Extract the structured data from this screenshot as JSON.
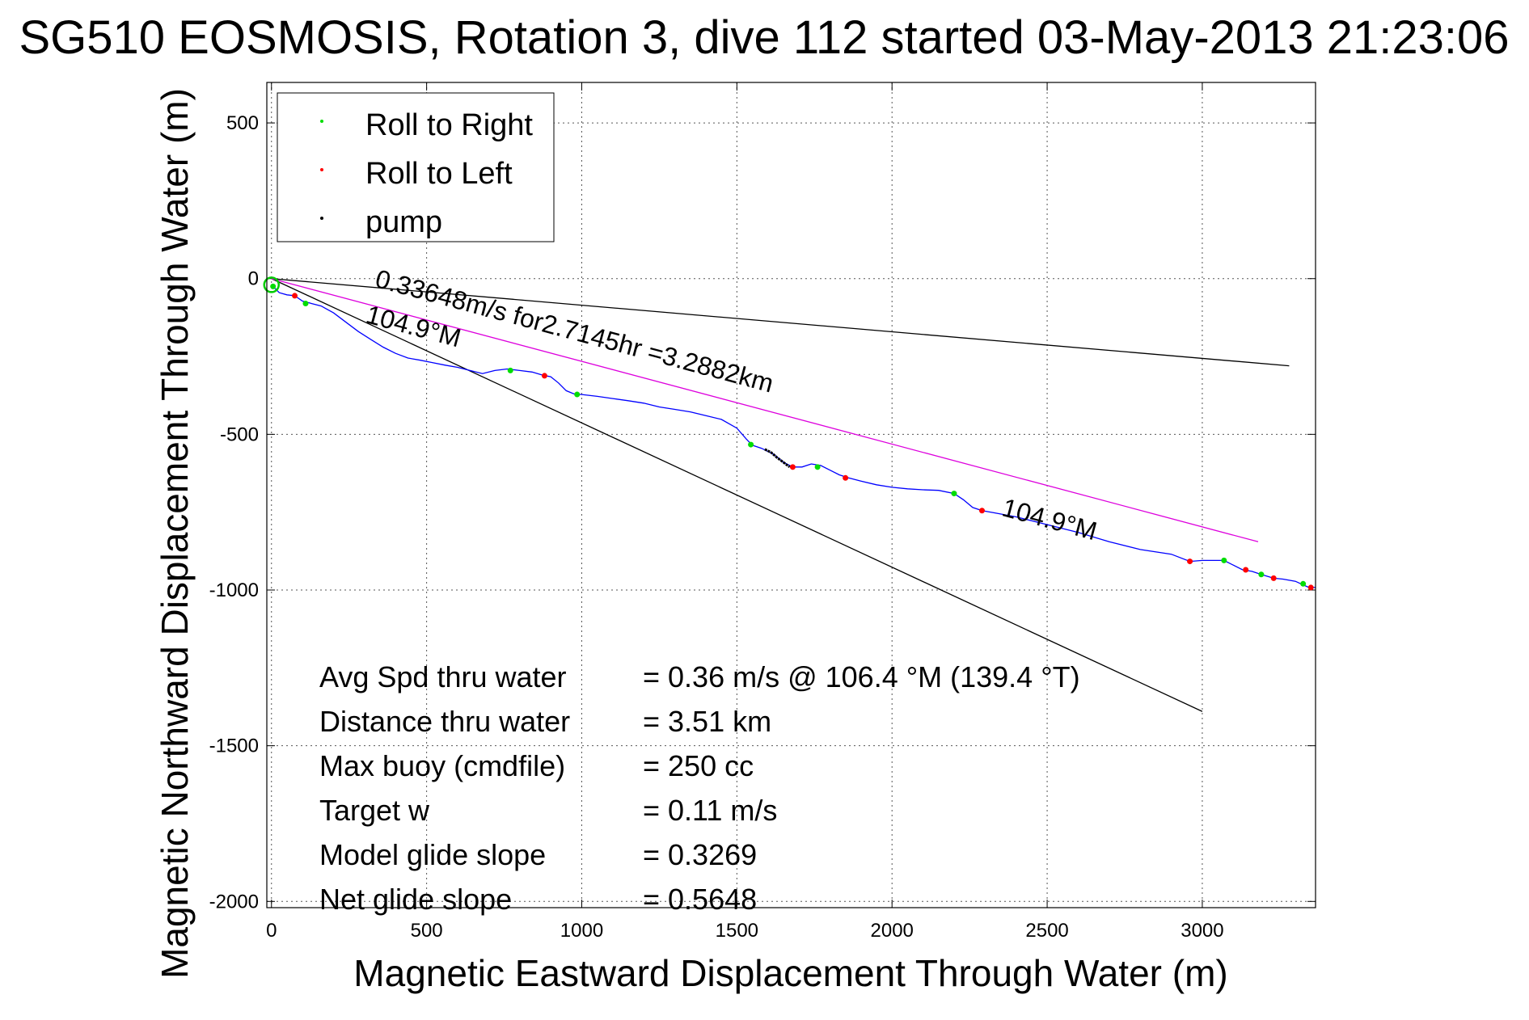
{
  "chart_data": {
    "type": "line",
    "title": "SG510 EOSMOSIS, Rotation 3, dive 112 started 03-May-2013 21:23:06",
    "xlabel": "Magnetic Eastward Displacement Through Water (m)",
    "ylabel": "Magnetic Northward Displacement Through Water (m)",
    "xlim": [
      -15,
      3365
    ],
    "ylim": [
      -2020,
      630
    ],
    "xticks": [
      0,
      500,
      1000,
      1500,
      2000,
      2500,
      3000
    ],
    "yticks": [
      500,
      0,
      -500,
      -1000,
      -1500,
      -2000
    ],
    "grid": true,
    "legend_position": "top-left",
    "legend": [
      {
        "label": "Roll to Right",
        "color": "#00dd00"
      },
      {
        "label": "Roll to Left",
        "color": "#ff0000"
      },
      {
        "label": "pump",
        "color": "#000000"
      }
    ],
    "track": {
      "name": "track",
      "color": "#0000ff",
      "points": [
        [
          0,
          -20
        ],
        [
          25,
          -45
        ],
        [
          50,
          -52
        ],
        [
          75,
          -55
        ],
        [
          100,
          -72
        ],
        [
          130,
          -80
        ],
        [
          160,
          -88
        ],
        [
          200,
          -110
        ],
        [
          240,
          -140
        ],
        [
          280,
          -170
        ],
        [
          320,
          -195
        ],
        [
          360,
          -220
        ],
        [
          400,
          -240
        ],
        [
          440,
          -255
        ],
        [
          480,
          -262
        ],
        [
          520,
          -270
        ],
        [
          560,
          -278
        ],
        [
          600,
          -285
        ],
        [
          640,
          -295
        ],
        [
          680,
          -305
        ],
        [
          720,
          -295
        ],
        [
          760,
          -290
        ],
        [
          800,
          -295
        ],
        [
          840,
          -300
        ],
        [
          875,
          -310
        ],
        [
          900,
          -315
        ],
        [
          925,
          -335
        ],
        [
          950,
          -360
        ],
        [
          975,
          -370
        ],
        [
          1000,
          -372
        ],
        [
          1050,
          -378
        ],
        [
          1100,
          -385
        ],
        [
          1150,
          -392
        ],
        [
          1200,
          -400
        ],
        [
          1250,
          -412
        ],
        [
          1300,
          -420
        ],
        [
          1350,
          -428
        ],
        [
          1400,
          -440
        ],
        [
          1450,
          -452
        ],
        [
          1500,
          -480
        ],
        [
          1530,
          -515
        ],
        [
          1550,
          -535
        ],
        [
          1580,
          -545
        ],
        [
          1620,
          -565
        ],
        [
          1650,
          -590
        ],
        [
          1680,
          -605
        ],
        [
          1710,
          -605
        ],
        [
          1740,
          -595
        ],
        [
          1770,
          -600
        ],
        [
          1800,
          -615
        ],
        [
          1830,
          -630
        ],
        [
          1860,
          -640
        ],
        [
          1900,
          -650
        ],
        [
          1950,
          -662
        ],
        [
          2000,
          -670
        ],
        [
          2050,
          -675
        ],
        [
          2100,
          -678
        ],
        [
          2150,
          -680
        ],
        [
          2200,
          -690
        ],
        [
          2230,
          -710
        ],
        [
          2260,
          -735
        ],
        [
          2290,
          -745
        ],
        [
          2330,
          -752
        ],
        [
          2400,
          -765
        ],
        [
          2500,
          -790
        ],
        [
          2600,
          -815
        ],
        [
          2700,
          -845
        ],
        [
          2800,
          -870
        ],
        [
          2900,
          -885
        ],
        [
          2960,
          -908
        ],
        [
          3000,
          -905
        ],
        [
          3050,
          -905
        ],
        [
          3070,
          -905
        ],
        [
          3100,
          -920
        ],
        [
          3130,
          -935
        ],
        [
          3160,
          -940
        ],
        [
          3190,
          -950
        ],
        [
          3230,
          -962
        ],
        [
          3260,
          -965
        ],
        [
          3300,
          -972
        ],
        [
          3340,
          -990
        ],
        [
          3365,
          -992
        ]
      ]
    },
    "roll_right_points": [
      [
        5,
        -25
      ],
      [
        110,
        -80
      ],
      [
        770,
        -295
      ],
      [
        985,
        -372
      ],
      [
        1545,
        -533
      ],
      [
        1760,
        -605
      ],
      [
        2200,
        -690
      ],
      [
        3070,
        -905
      ],
      [
        3190,
        -950
      ],
      [
        3325,
        -980
      ]
    ],
    "roll_left_points": [
      [
        75,
        -55
      ],
      [
        880,
        -312
      ],
      [
        1680,
        -605
      ],
      [
        1850,
        -640
      ],
      [
        2290,
        -745
      ],
      [
        2960,
        -908
      ],
      [
        3140,
        -935
      ],
      [
        3230,
        -962
      ],
      [
        3350,
        -992
      ]
    ],
    "pump_segment": [
      [
        1590,
        -548
      ],
      [
        1610,
        -558
      ],
      [
        1630,
        -575
      ],
      [
        1650,
        -590
      ],
      [
        1670,
        -605
      ]
    ],
    "reference_lines": [
      {
        "points": [
          [
            0,
            0
          ],
          [
            3280,
            -280
          ]
        ],
        "color": "#000000"
      },
      {
        "points": [
          [
            0,
            0
          ],
          [
            3000,
            -1390
          ]
        ],
        "color": "#000000"
      },
      {
        "points": [
          [
            0,
            0
          ],
          [
            3180,
            -845
          ]
        ],
        "color": "#dd00dd"
      }
    ],
    "start_marker": [
      0,
      -20
    ],
    "annotations": [
      {
        "text": "0.33648m/s for2.7145hr =3.2882km",
        "x": 330,
        "y": -25,
        "rotate": 15
      },
      {
        "text": "104.9°M",
        "x": 300,
        "y": -140,
        "rotate": 15
      },
      {
        "text": "104.9°M",
        "x": 2350,
        "y": -760,
        "rotate": 15
      }
    ],
    "stats": [
      {
        "label": "Avg Spd thru water",
        "value": "=  0.36 m/s @ 106.4 °M (139.4 °T)"
      },
      {
        "label": "Distance thru water",
        "value": "=  3.51 km"
      },
      {
        "label": "Max buoy (cmdfile)",
        "value": "= 250 cc"
      },
      {
        "label": "Target w",
        "value": "= 0.11 m/s"
      },
      {
        "label": "Model glide slope",
        "value": "= 0.3269"
      },
      {
        "label": "Net glide slope",
        "value": "= 0.5648"
      }
    ]
  }
}
